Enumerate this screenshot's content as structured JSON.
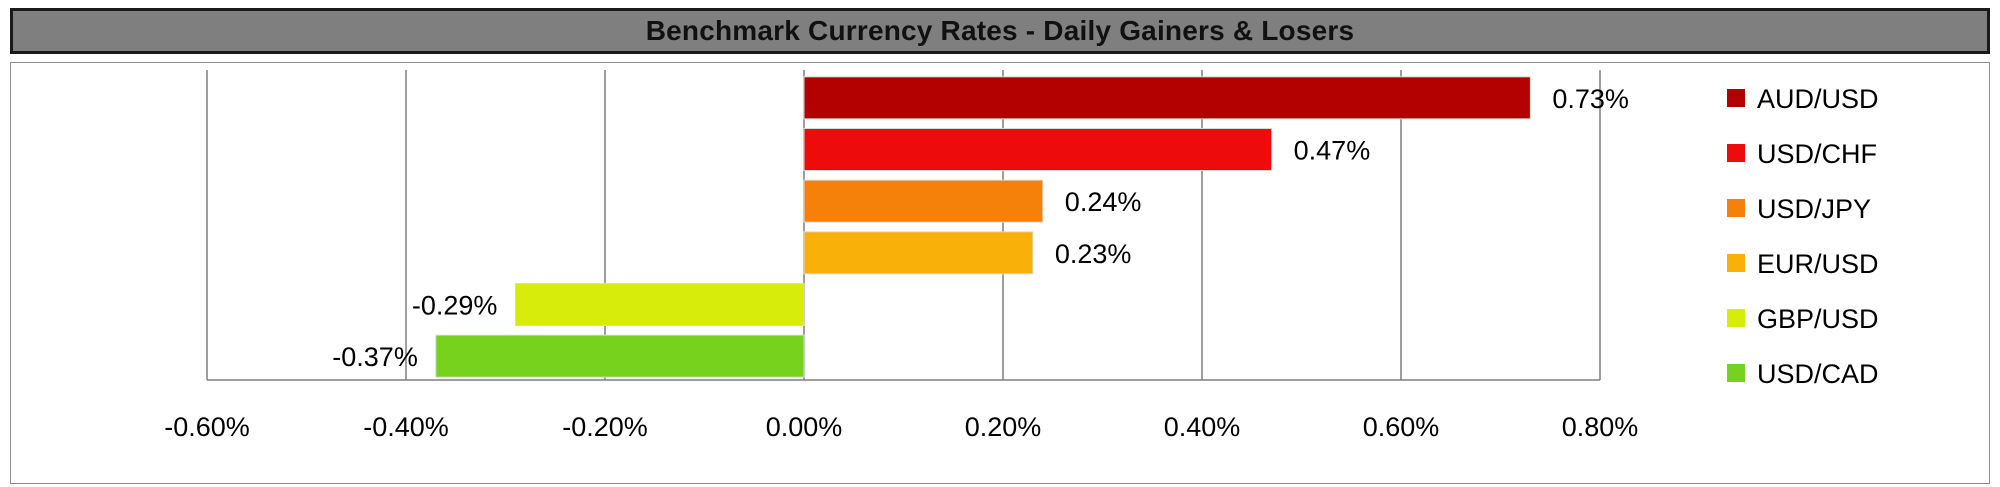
{
  "chart_data": {
    "type": "bar",
    "orientation": "horizontal",
    "title": "Benchmark Currency Rates - Daily Gainers & Losers",
    "categories": [
      "AUD/USD",
      "USD/CHF",
      "USD/JPY",
      "EUR/USD",
      "GBP/USD",
      "USD/CAD"
    ],
    "values": [
      0.73,
      0.47,
      0.24,
      0.23,
      -0.29,
      -0.37
    ],
    "data_labels": [
      "0.73%",
      "0.47%",
      "0.24%",
      "0.23%",
      "-0.29%",
      "-0.37%"
    ],
    "colors": [
      "#b30000",
      "#ee0b0b",
      "#f5800a",
      "#f9b008",
      "#d7ec0a",
      "#76d21c"
    ],
    "xlim": [
      -0.6,
      0.8
    ],
    "x_ticks": [
      -0.6,
      -0.4,
      -0.2,
      0.0,
      0.2,
      0.4,
      0.6,
      0.8
    ],
    "x_tick_labels": [
      "-0.60%",
      "-0.40%",
      "-0.20%",
      "0.00%",
      "0.20%",
      "0.40%",
      "0.60%",
      "0.80%"
    ],
    "grid": "vertical",
    "legend": "right"
  }
}
